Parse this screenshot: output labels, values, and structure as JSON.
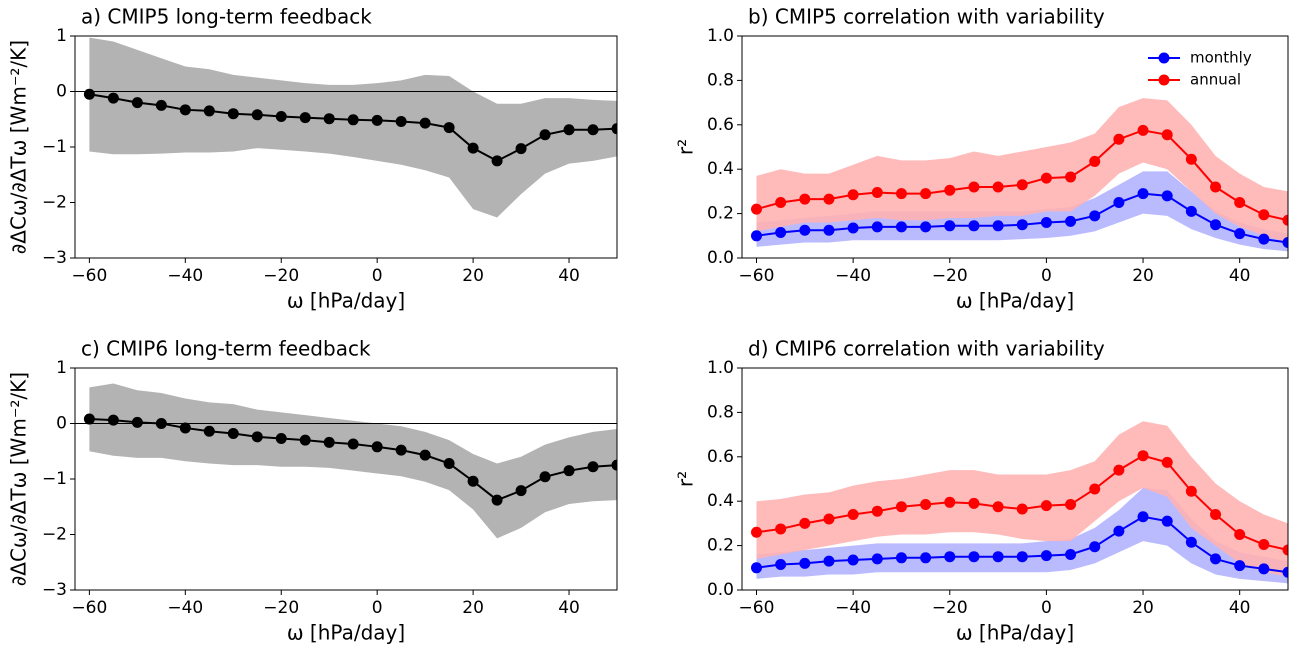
{
  "chart_data": [
    {
      "type": "line",
      "title": "a) CMIP5 long-term feedback",
      "xlabel": "ω [hPa/day]",
      "ylabel": "∂ΔCω/∂ΔTω [Wm⁻²/K]",
      "x": [
        -60,
        -55,
        -50,
        -45,
        -40,
        -35,
        -30,
        -25,
        -20,
        -15,
        -10,
        -5,
        0,
        5,
        10,
        15,
        20,
        25,
        30,
        35,
        40,
        45,
        50
      ],
      "xlim": [
        -63,
        50
      ],
      "xticks": [
        {
          "value": -60,
          "label": "−60"
        },
        {
          "value": -40,
          "label": "−40"
        },
        {
          "value": -20,
          "label": "−20"
        },
        0,
        20,
        40
      ],
      "ylim": [
        -3,
        1
      ],
      "yticks": [
        {
          "value": -3,
          "label": "−3"
        },
        {
          "value": -2,
          "label": "−2"
        },
        {
          "value": -1,
          "label": "−1"
        },
        0,
        1
      ],
      "hline": 0,
      "series": [
        {
          "color": "#000000",
          "band_color": "#b3b3b3",
          "values": [
            -0.05,
            -0.12,
            -0.2,
            -0.25,
            -0.33,
            -0.35,
            -0.4,
            -0.42,
            -0.45,
            -0.47,
            -0.49,
            -0.51,
            -0.52,
            -0.54,
            -0.57,
            -0.65,
            -1.02,
            -1.25,
            -1.03,
            -0.78,
            -0.69,
            -0.69,
            -0.67
          ],
          "band_upper": [
            0.97,
            0.9,
            0.75,
            0.6,
            0.45,
            0.4,
            0.3,
            0.25,
            0.2,
            0.15,
            0.12,
            0.12,
            0.15,
            0.2,
            0.3,
            0.28,
            0.0,
            -0.22,
            -0.22,
            -0.12,
            -0.12,
            -0.15,
            -0.17
          ],
          "band_lower": [
            -1.08,
            -1.13,
            -1.13,
            -1.12,
            -1.1,
            -1.1,
            -1.08,
            -1.02,
            -1.05,
            -1.08,
            -1.12,
            -1.18,
            -1.25,
            -1.32,
            -1.42,
            -1.55,
            -2.12,
            -2.27,
            -1.85,
            -1.48,
            -1.3,
            -1.25,
            -1.17
          ]
        }
      ]
    },
    {
      "type": "line",
      "title": "b) CMIP5 correlation with variability",
      "xlabel": "ω [hPa/day]",
      "ylabel": "r²",
      "x": [
        -60,
        -55,
        -50,
        -45,
        -40,
        -35,
        -30,
        -25,
        -20,
        -15,
        -10,
        -5,
        0,
        5,
        10,
        15,
        20,
        25,
        30,
        35,
        40,
        45,
        50
      ],
      "xlim": [
        -63,
        50
      ],
      "xticks": [
        {
          "value": -60,
          "label": "−60"
        },
        {
          "value": -40,
          "label": "−40"
        },
        {
          "value": -20,
          "label": "−20"
        },
        0,
        20,
        40
      ],
      "ylim": [
        0,
        1
      ],
      "yticks": [
        {
          "value": 0,
          "label": "0.0"
        },
        0.2,
        0.4,
        0.6,
        0.8,
        {
          "value": 1,
          "label": "1.0"
        }
      ],
      "legend": "upper right",
      "series": [
        {
          "name": "monthly",
          "color": "#0000ff",
          "band_color": "#b3b3ff",
          "values": [
            0.1,
            0.115,
            0.125,
            0.125,
            0.135,
            0.14,
            0.14,
            0.14,
            0.145,
            0.145,
            0.145,
            0.15,
            0.16,
            0.165,
            0.19,
            0.25,
            0.29,
            0.28,
            0.21,
            0.15,
            0.11,
            0.085,
            0.07
          ],
          "band_upper": [
            0.16,
            0.17,
            0.18,
            0.19,
            0.2,
            0.21,
            0.21,
            0.21,
            0.21,
            0.21,
            0.21,
            0.21,
            0.22,
            0.23,
            0.27,
            0.33,
            0.39,
            0.39,
            0.3,
            0.21,
            0.16,
            0.13,
            0.11
          ],
          "band_lower": [
            0.05,
            0.06,
            0.07,
            0.07,
            0.08,
            0.08,
            0.08,
            0.08,
            0.08,
            0.08,
            0.08,
            0.085,
            0.09,
            0.1,
            0.12,
            0.16,
            0.2,
            0.19,
            0.13,
            0.09,
            0.06,
            0.04,
            0.03
          ]
        },
        {
          "name": "annual",
          "color": "#ff0000",
          "band_color": "#ffb3b3",
          "values": [
            0.22,
            0.25,
            0.265,
            0.265,
            0.285,
            0.295,
            0.29,
            0.29,
            0.305,
            0.32,
            0.32,
            0.33,
            0.36,
            0.365,
            0.435,
            0.535,
            0.575,
            0.555,
            0.445,
            0.32,
            0.25,
            0.195,
            0.17
          ],
          "band_upper": [
            0.37,
            0.4,
            0.38,
            0.38,
            0.42,
            0.46,
            0.44,
            0.44,
            0.45,
            0.48,
            0.46,
            0.48,
            0.5,
            0.52,
            0.56,
            0.68,
            0.72,
            0.71,
            0.6,
            0.46,
            0.38,
            0.32,
            0.3
          ],
          "band_lower": [
            0.12,
            0.14,
            0.16,
            0.16,
            0.17,
            0.18,
            0.17,
            0.17,
            0.18,
            0.18,
            0.19,
            0.19,
            0.21,
            0.21,
            0.28,
            0.38,
            0.43,
            0.4,
            0.3,
            0.2,
            0.14,
            0.1,
            0.07
          ]
        }
      ]
    },
    {
      "type": "line",
      "title": "c) CMIP6 long-term feedback",
      "xlabel": "ω [hPa/day]",
      "ylabel": "∂ΔCω/∂ΔTω [Wm⁻²/K]",
      "x": [
        -60,
        -55,
        -50,
        -45,
        -40,
        -35,
        -30,
        -25,
        -20,
        -15,
        -10,
        -5,
        0,
        5,
        10,
        15,
        20,
        25,
        30,
        35,
        40,
        45,
        50
      ],
      "xlim": [
        -63,
        50
      ],
      "xticks": [
        {
          "value": -60,
          "label": "−60"
        },
        {
          "value": -40,
          "label": "−40"
        },
        {
          "value": -20,
          "label": "−20"
        },
        0,
        20,
        40
      ],
      "ylim": [
        -3,
        1
      ],
      "yticks": [
        {
          "value": -3,
          "label": "−3"
        },
        {
          "value": -2,
          "label": "−2"
        },
        {
          "value": -1,
          "label": "−1"
        },
        0,
        1
      ],
      "hline": 0,
      "series": [
        {
          "color": "#000000",
          "band_color": "#b3b3b3",
          "values": [
            0.08,
            0.06,
            0.02,
            0.0,
            -0.08,
            -0.14,
            -0.18,
            -0.24,
            -0.27,
            -0.3,
            -0.34,
            -0.37,
            -0.42,
            -0.48,
            -0.57,
            -0.72,
            -1.04,
            -1.38,
            -1.21,
            -0.96,
            -0.85,
            -0.78,
            -0.75
          ],
          "band_upper": [
            0.65,
            0.72,
            0.6,
            0.55,
            0.45,
            0.38,
            0.35,
            0.25,
            0.2,
            0.15,
            0.1,
            0.05,
            0.0,
            -0.05,
            -0.15,
            -0.3,
            -0.55,
            -0.72,
            -0.6,
            -0.38,
            -0.25,
            -0.15,
            -0.1
          ],
          "band_lower": [
            -0.5,
            -0.58,
            -0.62,
            -0.62,
            -0.68,
            -0.72,
            -0.75,
            -0.75,
            -0.78,
            -0.78,
            -0.8,
            -0.85,
            -0.9,
            -0.95,
            -1.05,
            -1.2,
            -1.55,
            -2.07,
            -1.88,
            -1.6,
            -1.45,
            -1.4,
            -1.38
          ]
        }
      ]
    },
    {
      "type": "line",
      "title": "d) CMIP6 correlation with variability",
      "xlabel": "ω [hPa/day]",
      "ylabel": "r²",
      "x": [
        -60,
        -55,
        -50,
        -45,
        -40,
        -35,
        -30,
        -25,
        -20,
        -15,
        -10,
        -5,
        0,
        5,
        10,
        15,
        20,
        25,
        30,
        35,
        40,
        45,
        50
      ],
      "xlim": [
        -63,
        50
      ],
      "xticks": [
        {
          "value": -60,
          "label": "−60"
        },
        {
          "value": -40,
          "label": "−40"
        },
        {
          "value": -20,
          "label": "−20"
        },
        0,
        20,
        40
      ],
      "ylim": [
        0,
        1
      ],
      "yticks": [
        {
          "value": 0,
          "label": "0.0"
        },
        0.2,
        0.4,
        0.6,
        0.8,
        {
          "value": 1,
          "label": "1.0"
        }
      ],
      "series": [
        {
          "color": "#0000ff",
          "band_color": "#b3b3ff",
          "values": [
            0.1,
            0.115,
            0.12,
            0.13,
            0.135,
            0.14,
            0.145,
            0.145,
            0.15,
            0.15,
            0.15,
            0.15,
            0.155,
            0.16,
            0.195,
            0.265,
            0.33,
            0.31,
            0.215,
            0.14,
            0.11,
            0.095,
            0.08
          ],
          "band_upper": [
            0.16,
            0.17,
            0.18,
            0.19,
            0.2,
            0.21,
            0.21,
            0.21,
            0.21,
            0.21,
            0.21,
            0.21,
            0.22,
            0.23,
            0.28,
            0.36,
            0.46,
            0.45,
            0.32,
            0.22,
            0.17,
            0.15,
            0.13
          ],
          "band_lower": [
            0.05,
            0.06,
            0.06,
            0.07,
            0.07,
            0.08,
            0.08,
            0.08,
            0.08,
            0.08,
            0.08,
            0.08,
            0.08,
            0.09,
            0.12,
            0.17,
            0.22,
            0.2,
            0.12,
            0.07,
            0.05,
            0.04,
            0.03
          ]
        },
        {
          "color": "#ff0000",
          "band_color": "#ffb3b3",
          "values": [
            0.26,
            0.275,
            0.3,
            0.32,
            0.34,
            0.355,
            0.375,
            0.385,
            0.395,
            0.39,
            0.375,
            0.365,
            0.38,
            0.385,
            0.455,
            0.54,
            0.605,
            0.575,
            0.445,
            0.34,
            0.25,
            0.205,
            0.18
          ],
          "band_upper": [
            0.4,
            0.41,
            0.43,
            0.44,
            0.47,
            0.49,
            0.5,
            0.52,
            0.54,
            0.54,
            0.52,
            0.52,
            0.52,
            0.54,
            0.58,
            0.7,
            0.76,
            0.74,
            0.6,
            0.48,
            0.4,
            0.34,
            0.3
          ],
          "band_lower": [
            0.14,
            0.16,
            0.18,
            0.2,
            0.22,
            0.24,
            0.25,
            0.25,
            0.26,
            0.26,
            0.25,
            0.23,
            0.22,
            0.22,
            0.31,
            0.4,
            0.46,
            0.42,
            0.28,
            0.2,
            0.12,
            0.08,
            0.06
          ]
        }
      ]
    }
  ]
}
